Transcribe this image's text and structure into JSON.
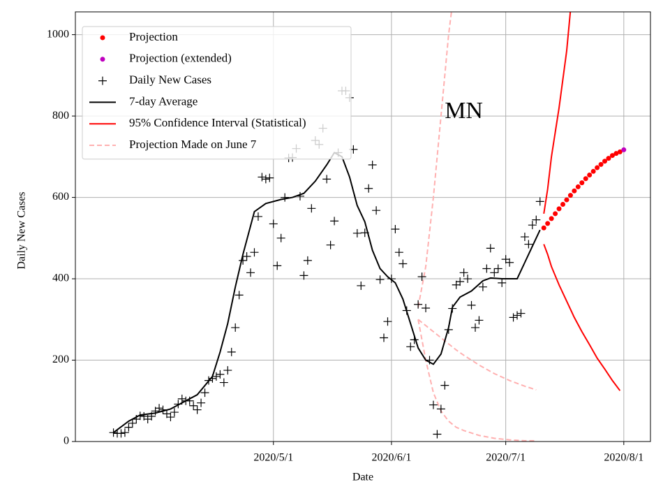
{
  "chart_data": {
    "type": "line",
    "x_label": "Date",
    "y_label": "Daily New Cases",
    "xlim": [
      "2020-03-10",
      "2020-08-08"
    ],
    "ylim": [
      0,
      1056
    ],
    "xticks": [
      {
        "value": "2020-05-01",
        "label": "2020/5/1"
      },
      {
        "value": "2020-06-01",
        "label": "2020/6/1"
      },
      {
        "value": "2020-07-01",
        "label": "2020/7/1"
      },
      {
        "value": "2020-08-01",
        "label": "2020/8/1"
      }
    ],
    "yticks": [
      0,
      200,
      400,
      600,
      800,
      1000
    ],
    "grid": true,
    "legend_loc": "upper left",
    "annotation": {
      "text": "MN",
      "x": "2020-06-20",
      "y": 808
    },
    "series": [
      {
        "name": "Projection",
        "color": "#ff0000",
        "style": "dot",
        "x": [
          "2020-07-11",
          "2020-07-12",
          "2020-07-13",
          "2020-07-14",
          "2020-07-15",
          "2020-07-16",
          "2020-07-17",
          "2020-07-18",
          "2020-07-19",
          "2020-07-20",
          "2020-07-21",
          "2020-07-22",
          "2020-07-23",
          "2020-07-24",
          "2020-07-25",
          "2020-07-26",
          "2020-07-27",
          "2020-07-28",
          "2020-07-29",
          "2020-07-30",
          "2020-07-31"
        ],
        "values": [
          525,
          536,
          548,
          560,
          572,
          583,
          594,
          605,
          616,
          626,
          636,
          646,
          655,
          664,
          673,
          681,
          689,
          696,
          703,
          708,
          712
        ]
      },
      {
        "name": "Projection (extended)",
        "color": "#bf00bf",
        "style": "dot",
        "x": [
          "2020-08-01"
        ],
        "values": [
          717
        ]
      },
      {
        "name": "Daily New Cases",
        "color": "#000000",
        "style": "plus",
        "x": [
          "2020-03-20",
          "2020-03-21",
          "2020-03-22",
          "2020-03-23",
          "2020-03-24",
          "2020-03-25",
          "2020-03-26",
          "2020-03-27",
          "2020-03-28",
          "2020-03-29",
          "2020-03-30",
          "2020-03-31",
          "2020-04-01",
          "2020-04-02",
          "2020-04-03",
          "2020-04-04",
          "2020-04-05",
          "2020-04-06",
          "2020-04-07",
          "2020-04-08",
          "2020-04-09",
          "2020-04-10",
          "2020-04-11",
          "2020-04-12",
          "2020-04-13",
          "2020-04-14",
          "2020-04-15",
          "2020-04-16",
          "2020-04-17",
          "2020-04-18",
          "2020-04-19",
          "2020-04-20",
          "2020-04-21",
          "2020-04-22",
          "2020-04-23",
          "2020-04-24",
          "2020-04-25",
          "2020-04-26",
          "2020-04-27",
          "2020-04-28",
          "2020-04-29",
          "2020-04-30",
          "2020-05-01",
          "2020-05-02",
          "2020-05-03",
          "2020-05-04",
          "2020-05-05",
          "2020-05-06",
          "2020-05-07",
          "2020-05-08",
          "2020-05-09",
          "2020-05-10",
          "2020-05-11",
          "2020-05-12",
          "2020-05-13",
          "2020-05-14",
          "2020-05-15",
          "2020-05-16",
          "2020-05-17",
          "2020-05-18",
          "2020-05-19",
          "2020-05-20",
          "2020-05-21",
          "2020-05-22",
          "2020-05-23",
          "2020-05-24",
          "2020-05-25",
          "2020-05-26",
          "2020-05-27",
          "2020-05-28",
          "2020-05-29",
          "2020-05-30",
          "2020-05-31",
          "2020-06-01",
          "2020-06-02",
          "2020-06-03",
          "2020-06-04",
          "2020-06-05",
          "2020-06-06",
          "2020-06-07",
          "2020-06-08",
          "2020-06-09",
          "2020-06-10",
          "2020-06-11",
          "2020-06-12",
          "2020-06-13",
          "2020-06-14",
          "2020-06-15",
          "2020-06-16",
          "2020-06-17",
          "2020-06-18",
          "2020-06-19",
          "2020-06-20",
          "2020-06-21",
          "2020-06-22",
          "2020-06-23",
          "2020-06-24",
          "2020-06-25",
          "2020-06-26",
          "2020-06-27",
          "2020-06-28",
          "2020-06-29",
          "2020-06-30",
          "2020-07-01",
          "2020-07-02",
          "2020-07-03",
          "2020-07-04",
          "2020-07-05",
          "2020-07-06",
          "2020-07-07",
          "2020-07-08",
          "2020-07-09",
          "2020-07-10"
        ],
        "values": [
          22,
          20,
          20,
          22,
          35,
          45,
          55,
          63,
          62,
          55,
          62,
          75,
          82,
          78,
          68,
          60,
          72,
          92,
          105,
          100,
          100,
          88,
          78,
          95,
          120,
          150,
          155,
          160,
          165,
          145,
          175,
          220,
          280,
          360,
          445,
          455,
          415,
          465,
          553,
          650,
          645,
          648,
          535,
          432,
          500,
          600,
          697,
          698,
          720,
          603,
          408,
          445,
          573,
          740,
          730,
          770,
          645,
          483,
          542,
          710,
          862,
          862,
          845,
          718,
          512,
          383,
          513,
          622,
          680,
          568,
          398,
          255,
          295,
          400,
          522,
          465,
          437,
          322,
          233,
          250,
          337,
          405,
          328,
          200,
          90,
          18,
          80,
          138,
          275,
          327,
          385,
          393,
          415,
          400,
          335,
          280,
          298,
          380,
          425,
          475,
          415,
          425,
          390,
          448,
          440,
          305,
          310,
          315,
          503,
          485,
          532,
          545,
          590
        ]
      },
      {
        "name": "7-day Average",
        "color": "#000000",
        "style": "line",
        "x": [
          "2020-03-20",
          "2020-03-24",
          "2020-03-27",
          "2020-03-31",
          "2020-04-04",
          "2020-04-07",
          "2020-04-11",
          "2020-04-15",
          "2020-04-17",
          "2020-04-19",
          "2020-04-21",
          "2020-04-23",
          "2020-04-25",
          "2020-04-26",
          "2020-04-29",
          "2020-05-03",
          "2020-05-06",
          "2020-05-09",
          "2020-05-12",
          "2020-05-15",
          "2020-05-17",
          "2020-05-19",
          "2020-05-21",
          "2020-05-23",
          "2020-05-25",
          "2020-05-27",
          "2020-05-29",
          "2020-05-31",
          "2020-06-02",
          "2020-06-04",
          "2020-06-06",
          "2020-06-08",
          "2020-06-10",
          "2020-06-12",
          "2020-06-14",
          "2020-06-16",
          "2020-06-17",
          "2020-06-19",
          "2020-06-22",
          "2020-06-25",
          "2020-06-27",
          "2020-06-30",
          "2020-07-04",
          "2020-07-06",
          "2020-07-08",
          "2020-07-10"
        ],
        "values": [
          22,
          50,
          65,
          70,
          80,
          95,
          115,
          160,
          220,
          290,
          380,
          460,
          530,
          565,
          585,
          595,
          600,
          610,
          640,
          680,
          710,
          700,
          650,
          580,
          540,
          470,
          425,
          405,
          390,
          350,
          290,
          230,
          200,
          190,
          215,
          280,
          330,
          355,
          370,
          395,
          402,
          400,
          400,
          440,
          480,
          520
        ]
      },
      {
        "name": "95% Confidence Interval (Statistical)",
        "color": "#ff0000",
        "style": "band",
        "x": [
          "2020-07-11",
          "2020-07-12",
          "2020-07-13",
          "2020-07-15",
          "2020-07-17",
          "2020-07-18",
          "2020-07-19",
          "2020-07-21",
          "2020-07-23",
          "2020-07-25",
          "2020-07-27",
          "2020-07-29",
          "2020-07-31"
        ],
        "upper": [
          560,
          620,
          700,
          820,
          960,
          1060,
          1160,
          null,
          null,
          null,
          null,
          null,
          null
        ],
        "lower": [
          485,
          460,
          430,
          385,
          345,
          325,
          305,
          270,
          238,
          205,
          178,
          150,
          125
        ]
      },
      {
        "name": "Projection Made on June 7",
        "color": "#ffb0b0",
        "style": "dashed",
        "x": [
          "2020-06-08",
          "2020-06-10",
          "2020-06-12",
          "2020-06-14",
          "2020-06-16",
          "2020-06-18",
          "2020-06-20",
          "2020-06-24",
          "2020-06-28",
          "2020-07-02",
          "2020-07-06",
          "2020-07-09"
        ],
        "values": [
          300,
          285,
          270,
          255,
          240,
          225,
          212,
          188,
          167,
          150,
          136,
          127
        ],
        "upper": [
          330,
          430,
          600,
          800,
          1000,
          1150,
          null,
          null,
          null,
          null,
          null,
          null
        ],
        "lower": [
          300,
          200,
          120,
          75,
          50,
          35,
          27,
          15,
          8,
          4,
          2,
          2
        ]
      }
    ]
  }
}
